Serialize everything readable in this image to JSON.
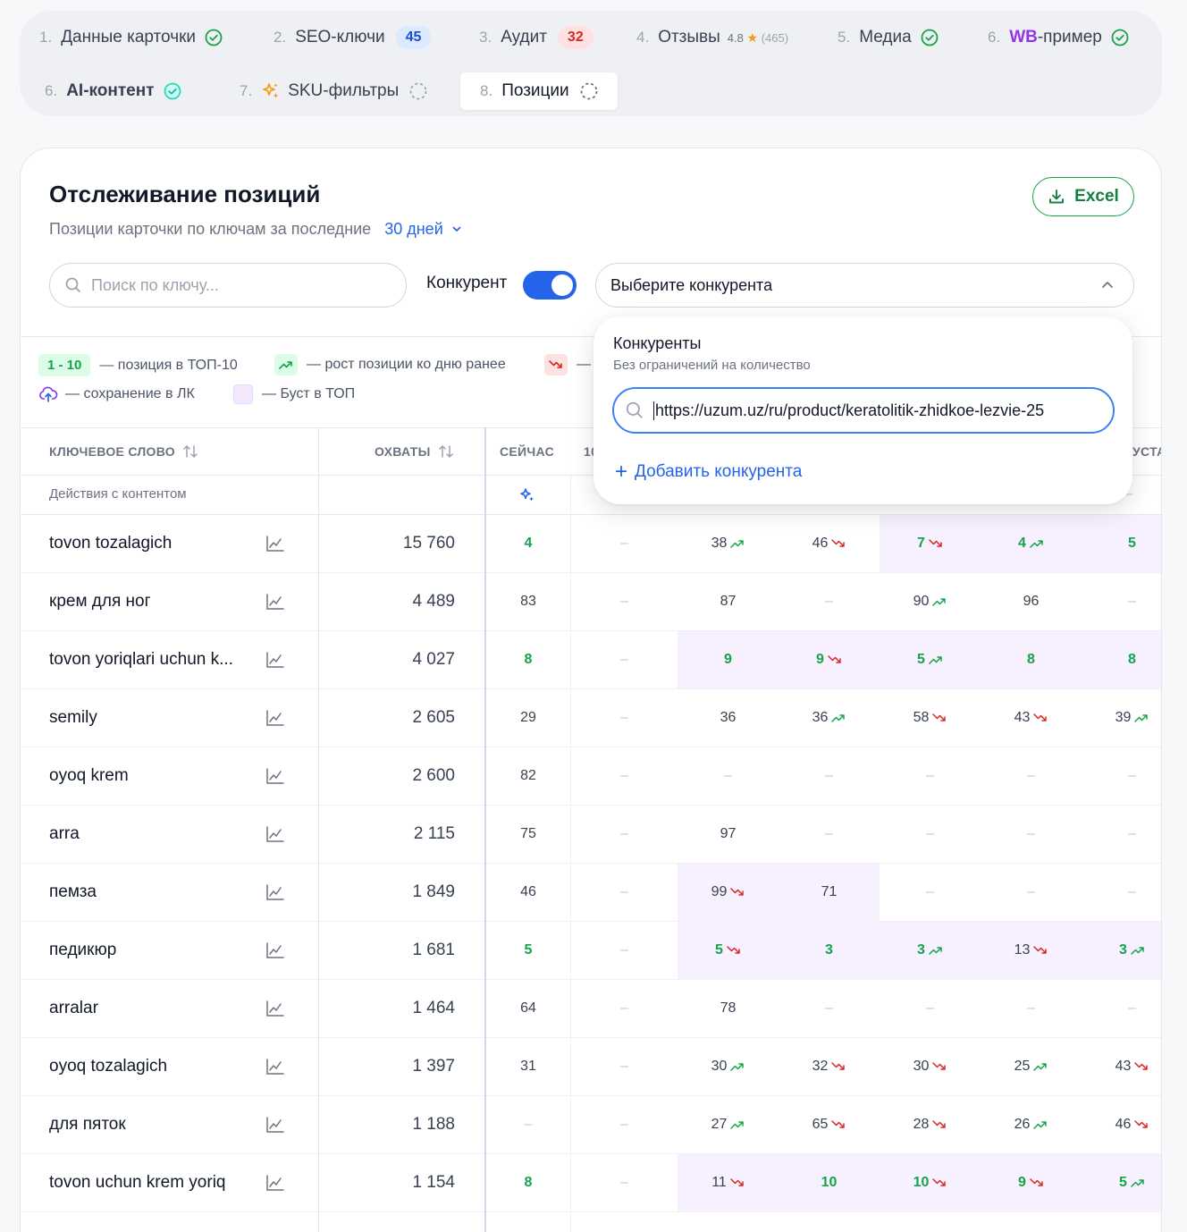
{
  "steps": [
    {
      "num": "1.",
      "label": "Данные карточки",
      "status": "done"
    },
    {
      "num": "2.",
      "label": "SEO-ключи",
      "badge": "45"
    },
    {
      "num": "3.",
      "label": "Аудит",
      "badge": "32"
    },
    {
      "num": "4.",
      "label": "Отзывы",
      "rating": "4.8",
      "reviews": "(465)"
    },
    {
      "num": "5.",
      "label": "Медиа",
      "status": "done"
    },
    {
      "num": "6.",
      "label_prefix": "WB",
      "label": "-пример",
      "status": "done"
    },
    {
      "num": "6.",
      "label": "AI-контент",
      "status": "done"
    },
    {
      "num": "7.",
      "label": "SKU-фильтры",
      "status": "pending"
    },
    {
      "num": "8.",
      "label": "Позиции",
      "status": "pending"
    }
  ],
  "page": {
    "title": "Отслеживание позиций",
    "subtitle": "Позиции карточки по ключам за последние",
    "period": "30 дней",
    "excel_label": "Excel"
  },
  "filters": {
    "search_placeholder": "Поиск по ключу...",
    "competitor_label": "Конкурент",
    "competitor_toggle": true,
    "competitor_select": "Выберите конкурента"
  },
  "legend": {
    "top10_badge": "1 - 10",
    "top10_text": "— позиция в ТОП-10",
    "up_text": "— рост позиции ко дню ранее",
    "down_text": "—",
    "saved_text": "— сохранение в ЛК",
    "boost_text": "— Буст в ТОП"
  },
  "table": {
    "col_keyword": "КЛЮЧЕВОЕ СЛОВО",
    "col_reach": "ОХВАТЫ",
    "col_now": "СЕЙЧАС",
    "col_partial_1": "10",
    "col_partial_2": "УСТА",
    "actions_label": "Действия с контентом",
    "actions_dash": "–",
    "rows": [
      {
        "kw": "tovon tozalagich",
        "reach": "15 760",
        "now": "4",
        "nowg": true,
        "c1": "–",
        "cells": [
          {
            "v": "38",
            "t": "up"
          },
          {
            "v": "46",
            "t": "down"
          },
          {
            "v": "7",
            "t": "down",
            "g": true,
            "b": true
          },
          {
            "v": "4",
            "t": "up",
            "g": true,
            "b": true
          },
          {
            "v": "5",
            "g": true,
            "b": true
          }
        ]
      },
      {
        "kw": "крем для ног",
        "reach": "4 489",
        "now": "83",
        "c1": "–",
        "cells": [
          {
            "v": "87"
          },
          {
            "v": "–"
          },
          {
            "v": "90",
            "t": "up"
          },
          {
            "v": "96"
          },
          {
            "v": "–"
          }
        ]
      },
      {
        "kw": "tovon yoriqlari uchun k...",
        "reach": "4 027",
        "now": "8",
        "nowg": true,
        "c1": "–",
        "cells": [
          {
            "v": "9",
            "g": true,
            "b": true
          },
          {
            "v": "9",
            "t": "down",
            "g": true,
            "b": true
          },
          {
            "v": "5",
            "t": "up",
            "g": true,
            "b": true
          },
          {
            "v": "8",
            "g": true,
            "b": true
          },
          {
            "v": "8",
            "g": true,
            "b": true
          }
        ]
      },
      {
        "kw": "semily",
        "reach": "2 605",
        "now": "29",
        "c1": "–",
        "cells": [
          {
            "v": "36"
          },
          {
            "v": "36",
            "t": "up"
          },
          {
            "v": "58",
            "t": "down"
          },
          {
            "v": "43",
            "t": "down"
          },
          {
            "v": "39",
            "t": "up"
          }
        ]
      },
      {
        "kw": "oyoq krem",
        "reach": "2 600",
        "now": "82",
        "c1": "–",
        "cells": [
          {
            "v": "–"
          },
          {
            "v": "–"
          },
          {
            "v": "–"
          },
          {
            "v": "–"
          },
          {
            "v": "–"
          }
        ]
      },
      {
        "kw": "arra",
        "reach": "2 115",
        "now": "75",
        "c1": "–",
        "cells": [
          {
            "v": "97"
          },
          {
            "v": "–"
          },
          {
            "v": "–"
          },
          {
            "v": "–"
          },
          {
            "v": "–"
          }
        ]
      },
      {
        "kw": "пемза",
        "reach": "1 849",
        "now": "46",
        "c1": "–",
        "cells": [
          {
            "v": "99",
            "t": "down",
            "b": true
          },
          {
            "v": "71",
            "b": true
          },
          {
            "v": "–"
          },
          {
            "v": "–"
          },
          {
            "v": "–"
          }
        ]
      },
      {
        "kw": "педикюр",
        "reach": "1 681",
        "now": "5",
        "nowg": true,
        "c1": "–",
        "cells": [
          {
            "v": "5",
            "t": "down",
            "g": true,
            "b": true
          },
          {
            "v": "3",
            "g": true,
            "b": true
          },
          {
            "v": "3",
            "t": "up",
            "g": true,
            "b": true
          },
          {
            "v": "13",
            "t": "down",
            "b": true
          },
          {
            "v": "3",
            "t": "up",
            "g": true,
            "b": true
          }
        ]
      },
      {
        "kw": "arralar",
        "reach": "1 464",
        "now": "64",
        "c1": "–",
        "cells": [
          {
            "v": "78"
          },
          {
            "v": "–"
          },
          {
            "v": "–"
          },
          {
            "v": "–"
          },
          {
            "v": "–"
          }
        ]
      },
      {
        "kw": "oyoq tozalagich",
        "reach": "1 397",
        "now": "31",
        "c1": "–",
        "cells": [
          {
            "v": "30",
            "t": "up"
          },
          {
            "v": "32",
            "t": "down"
          },
          {
            "v": "30",
            "t": "down"
          },
          {
            "v": "25",
            "t": "up"
          },
          {
            "v": "43",
            "t": "down"
          }
        ]
      },
      {
        "kw": "для пяток",
        "reach": "1 188",
        "now": "–",
        "c1": "–",
        "cells": [
          {
            "v": "27",
            "t": "up"
          },
          {
            "v": "65",
            "t": "down"
          },
          {
            "v": "28",
            "t": "down"
          },
          {
            "v": "26",
            "t": "up"
          },
          {
            "v": "46",
            "t": "down"
          }
        ]
      },
      {
        "kw": "tovon uchun krem yoriq",
        "reach": "1 154",
        "now": "8",
        "nowg": true,
        "c1": "–",
        "cells": [
          {
            "v": "11",
            "t": "down",
            "b": true
          },
          {
            "v": "10",
            "g": true,
            "b": true
          },
          {
            "v": "10",
            "t": "down",
            "g": true,
            "b": true
          },
          {
            "v": "9",
            "t": "down",
            "g": true,
            "b": true
          },
          {
            "v": "5",
            "t": "up",
            "g": true,
            "b": true
          }
        ]
      }
    ]
  },
  "popup": {
    "title": "Конкуренты",
    "subtitle": "Без ограничений на количество",
    "url_value": "https://uzum.uz/ru/product/keratolitik-zhidkoe-lezvie-25",
    "add_label": "Добавить конкурента"
  },
  "colors": {
    "accent": "#2563eb",
    "green": "#16a34a",
    "red": "#dc2626",
    "boost": "#f6f0ff",
    "wb": "#9333ea"
  }
}
